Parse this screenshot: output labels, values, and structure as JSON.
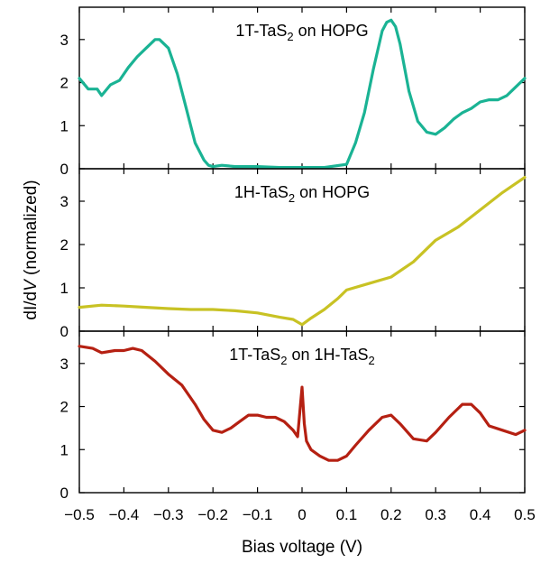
{
  "chart_data": {
    "type": "line",
    "xlabel": "Bias voltage (V)",
    "ylabel_parts": [
      "dI/d",
      "V",
      " (normalized)"
    ],
    "xlim": [
      -0.5,
      0.5
    ],
    "xticks": [
      "−0.5",
      "−0.4",
      "−0.3",
      "−0.2",
      "−0.1",
      "0",
      "0.1",
      "0.2",
      "0.3",
      "0.4",
      "0.5"
    ],
    "grid": false,
    "panels": [
      {
        "label_parts": [
          "1T-TaS",
          "2",
          " on HOPG"
        ],
        "color": "#1ab394",
        "ylim": [
          0,
          3.75
        ],
        "yticks": [
          "0",
          "1",
          "2",
          "3"
        ],
        "x": [
          -0.5,
          -0.48,
          -0.46,
          -0.45,
          -0.43,
          -0.41,
          -0.39,
          -0.37,
          -0.35,
          -0.33,
          -0.32,
          -0.3,
          -0.28,
          -0.26,
          -0.24,
          -0.22,
          -0.21,
          -0.2,
          -0.18,
          -0.15,
          -0.1,
          -0.05,
          0,
          0.05,
          0.1,
          0.12,
          0.14,
          0.16,
          0.18,
          0.19,
          0.2,
          0.21,
          0.22,
          0.24,
          0.26,
          0.28,
          0.3,
          0.32,
          0.34,
          0.36,
          0.38,
          0.4,
          0.42,
          0.44,
          0.46,
          0.48,
          0.5
        ],
        "y": [
          2.1,
          1.85,
          1.85,
          1.7,
          1.95,
          2.05,
          2.35,
          2.6,
          2.8,
          3.0,
          3.0,
          2.8,
          2.2,
          1.4,
          0.6,
          0.2,
          0.08,
          0.05,
          0.08,
          0.05,
          0.05,
          0.03,
          0.03,
          0.03,
          0.1,
          0.6,
          1.3,
          2.3,
          3.2,
          3.4,
          3.45,
          3.3,
          2.9,
          1.8,
          1.1,
          0.85,
          0.8,
          0.95,
          1.15,
          1.3,
          1.4,
          1.55,
          1.6,
          1.6,
          1.7,
          1.9,
          2.1
        ]
      },
      {
        "label_parts": [
          "1H-TaS",
          "2",
          " on HOPG"
        ],
        "color": "#c8c224",
        "ylim": [
          0,
          3.75
        ],
        "yticks": [
          "0",
          "1",
          "2",
          "3"
        ],
        "x": [
          -0.5,
          -0.45,
          -0.4,
          -0.35,
          -0.3,
          -0.25,
          -0.2,
          -0.15,
          -0.1,
          -0.05,
          -0.02,
          0,
          0.02,
          0.05,
          0.08,
          0.1,
          0.15,
          0.2,
          0.25,
          0.3,
          0.35,
          0.4,
          0.45,
          0.5
        ],
        "y": [
          0.55,
          0.6,
          0.58,
          0.55,
          0.52,
          0.5,
          0.5,
          0.47,
          0.42,
          0.32,
          0.27,
          0.15,
          0.3,
          0.5,
          0.75,
          0.95,
          1.1,
          1.25,
          1.6,
          2.1,
          2.4,
          2.8,
          3.2,
          3.55
        ]
      },
      {
        "label_parts": [
          "1T-TaS",
          "2",
          " on 1H-TaS",
          "2"
        ],
        "color": "#b52012",
        "ylim": [
          0,
          3.75
        ],
        "yticks": [
          "0",
          "1",
          "2",
          "3"
        ],
        "x": [
          -0.5,
          -0.47,
          -0.45,
          -0.42,
          -0.4,
          -0.38,
          -0.36,
          -0.33,
          -0.3,
          -0.27,
          -0.24,
          -0.22,
          -0.2,
          -0.18,
          -0.16,
          -0.14,
          -0.12,
          -0.1,
          -0.08,
          -0.06,
          -0.04,
          -0.02,
          -0.01,
          0,
          0.005,
          0.01,
          0.02,
          0.04,
          0.06,
          0.08,
          0.1,
          0.12,
          0.15,
          0.18,
          0.2,
          0.22,
          0.25,
          0.28,
          0.3,
          0.33,
          0.36,
          0.38,
          0.4,
          0.42,
          0.45,
          0.48,
          0.5
        ],
        "y": [
          3.4,
          3.35,
          3.25,
          3.3,
          3.3,
          3.35,
          3.3,
          3.05,
          2.75,
          2.5,
          2.05,
          1.7,
          1.45,
          1.4,
          1.5,
          1.65,
          1.8,
          1.8,
          1.75,
          1.75,
          1.65,
          1.45,
          1.3,
          2.45,
          1.6,
          1.2,
          1.0,
          0.85,
          0.75,
          0.75,
          0.85,
          1.1,
          1.45,
          1.75,
          1.8,
          1.6,
          1.25,
          1.2,
          1.4,
          1.75,
          2.05,
          2.05,
          1.85,
          1.55,
          1.45,
          1.35,
          1.45
        ]
      }
    ]
  }
}
